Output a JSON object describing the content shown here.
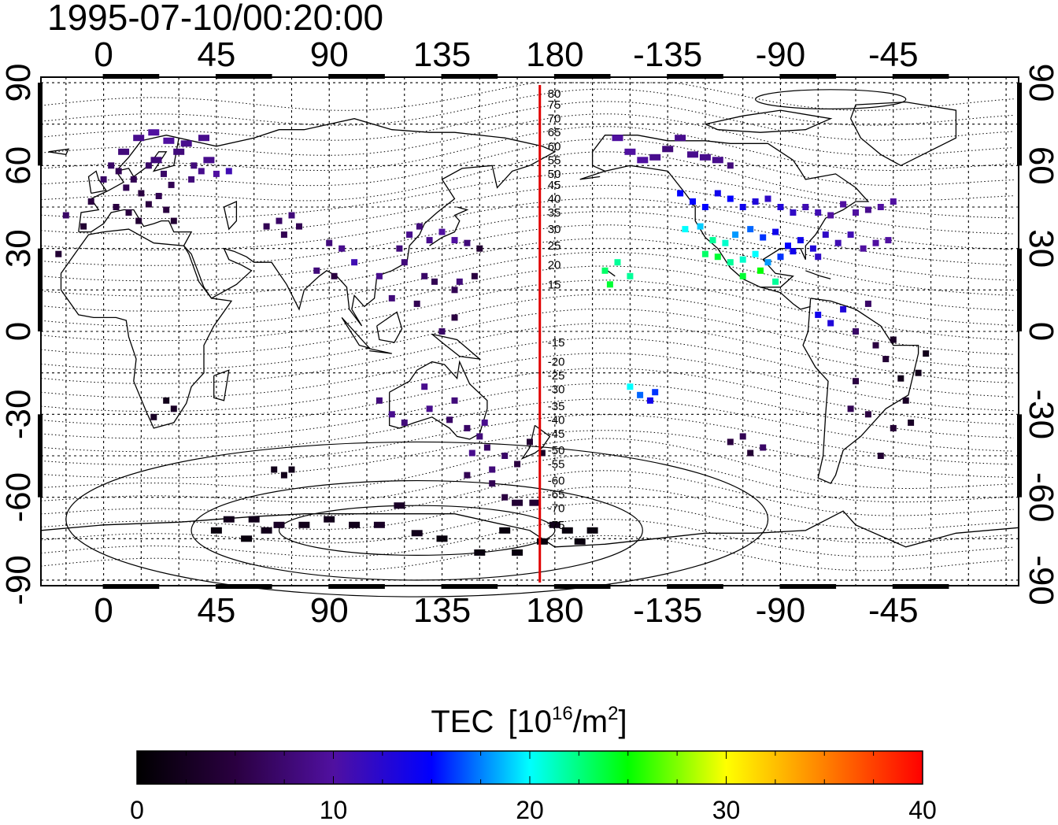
{
  "title": "1995-07-10/00:20:00",
  "map": {
    "lon_range": [
      -25,
      365
    ],
    "lat_range": [
      -92,
      92
    ],
    "top_lon_ticks": [
      "0",
      "45",
      "90",
      "135",
      "180",
      "-135",
      "-90",
      "-45"
    ],
    "bottom_lon_ticks": [
      "0",
      "45",
      "90",
      "135",
      "180",
      "-135",
      "-90",
      "-45"
    ],
    "left_lat_ticks": [
      "90",
      "60",
      "30",
      "0",
      "-30",
      "-60",
      "-90"
    ],
    "right_lat_ticks": [
      "90",
      "60",
      "30",
      "0",
      "-30",
      "-60",
      "-90"
    ],
    "tick_lon_values": [
      0,
      45,
      90,
      135,
      180,
      225,
      270,
      315
    ],
    "tick_lat_values": [
      90,
      60,
      30,
      0,
      -30,
      -60,
      -90
    ],
    "meridian_lon": 174,
    "meridian_color": "#e00000",
    "contour_labels": [
      "80",
      "75",
      "70",
      "65",
      "60",
      "55",
      "50",
      "45",
      "40",
      "35",
      "30",
      "25",
      "20",
      "15",
      "-15",
      "-20",
      "-25",
      "-30",
      "-35",
      "-40",
      "-45",
      "-50",
      "-55",
      "-60",
      "-65",
      "-70",
      "-75"
    ],
    "contour_label_lats": [
      86,
      82,
      77,
      72,
      67,
      62,
      57,
      53,
      48,
      43,
      37,
      31,
      24,
      17,
      -4,
      -11,
      -16,
      -21,
      -27,
      -32,
      -37,
      -43,
      -48,
      -54,
      -59,
      -64,
      -70
    ]
  },
  "colorbar": {
    "title": "TEC",
    "units": "[10",
    "units_exp": "16",
    "units_tail": "/m",
    "units_sq": "2",
    "units_end": "]",
    "range": [
      0,
      40
    ],
    "tick_labels": [
      "0",
      "10",
      "20",
      "30",
      "40"
    ],
    "tick_values": [
      0,
      10,
      20,
      30,
      40
    ],
    "stops": [
      "#000000",
      "#2a0040",
      "#5010a0",
      "#0000ff",
      "#00ffff",
      "#00ff00",
      "#ffff00",
      "#ff8000",
      "#ff0000"
    ]
  },
  "chart_data": {
    "type": "scatter",
    "title": "1995-07-10/00:20:00",
    "xlabel": "",
    "ylabel": "",
    "value_name": "TEC",
    "points": [
      [
        0,
        55,
        7
      ],
      [
        3,
        60,
        7
      ],
      [
        6,
        58,
        6
      ],
      [
        9,
        52,
        6
      ],
      [
        12,
        55,
        6
      ],
      [
        15,
        50,
        5
      ],
      [
        18,
        60,
        7
      ],
      [
        21,
        62,
        8
      ],
      [
        24,
        57,
        7
      ],
      [
        27,
        53,
        6
      ],
      [
        30,
        65,
        8
      ],
      [
        33,
        68,
        9
      ],
      [
        36,
        60,
        8
      ],
      [
        39,
        58,
        9
      ],
      [
        42,
        62,
        9
      ],
      [
        45,
        57,
        10
      ],
      [
        50,
        58,
        11
      ],
      [
        -5,
        47,
        5
      ],
      [
        -8,
        38,
        4
      ],
      [
        5,
        45,
        5
      ],
      [
        10,
        43,
        5
      ],
      [
        14,
        40,
        4
      ],
      [
        18,
        46,
        5
      ],
      [
        22,
        49,
        6
      ],
      [
        25,
        44,
        5
      ],
      [
        28,
        40,
        4
      ],
      [
        35,
        55,
        8
      ],
      [
        40,
        70,
        9
      ],
      [
        20,
        72,
        10
      ],
      [
        -15,
        42,
        7
      ],
      [
        -18,
        28,
        4
      ],
      [
        8,
        65,
        8
      ],
      [
        14,
        70,
        9
      ],
      [
        26,
        69,
        10
      ],
      [
        65,
        38,
        6
      ],
      [
        70,
        40,
        7
      ],
      [
        75,
        42,
        8
      ],
      [
        78,
        38,
        6
      ],
      [
        72,
        35,
        6
      ],
      [
        90,
        32,
        8
      ],
      [
        95,
        30,
        9
      ],
      [
        100,
        25,
        11
      ],
      [
        85,
        22,
        8
      ],
      [
        92,
        20,
        5
      ],
      [
        118,
        30,
        8
      ],
      [
        122,
        35,
        9
      ],
      [
        126,
        38,
        8
      ],
      [
        130,
        33,
        9
      ],
      [
        135,
        36,
        10
      ],
      [
        140,
        33,
        10
      ],
      [
        145,
        32,
        8
      ],
      [
        150,
        30,
        4
      ],
      [
        128,
        20,
        7
      ],
      [
        132,
        18,
        6
      ],
      [
        140,
        15,
        6
      ],
      [
        142,
        18,
        8
      ],
      [
        148,
        20,
        5
      ],
      [
        120,
        25,
        8
      ],
      [
        115,
        12,
        8
      ],
      [
        110,
        20,
        9
      ],
      [
        125,
        10,
        6
      ],
      [
        135,
        0,
        7
      ],
      [
        140,
        5,
        5
      ],
      [
        110,
        -25,
        8
      ],
      [
        115,
        -30,
        9
      ],
      [
        120,
        -33,
        8
      ],
      [
        130,
        -28,
        9
      ],
      [
        138,
        -32,
        7
      ],
      [
        145,
        -35,
        7
      ],
      [
        150,
        -38,
        8
      ],
      [
        152,
        -33,
        9
      ],
      [
        128,
        -20,
        9
      ],
      [
        140,
        -25,
        8
      ],
      [
        147,
        -44,
        9
      ],
      [
        153,
        -42,
        7
      ],
      [
        160,
        -45,
        7
      ],
      [
        165,
        -48,
        5
      ],
      [
        170,
        -40,
        4
      ],
      [
        175,
        -44,
        3
      ],
      [
        155,
        -55,
        6
      ],
      [
        160,
        -60,
        5
      ],
      [
        165,
        -62,
        4
      ],
      [
        172,
        -62,
        4
      ],
      [
        180,
        -70,
        2
      ],
      [
        185,
        -72,
        1
      ],
      [
        160,
        -72,
        1
      ],
      [
        150,
        -80,
        1
      ],
      [
        165,
        -80,
        1
      ],
      [
        175,
        -76,
        1
      ],
      [
        190,
        -76,
        1
      ],
      [
        195,
        -72,
        1
      ],
      [
        135,
        -75,
        1
      ],
      [
        125,
        -73,
        2
      ],
      [
        110,
        -70,
        3
      ],
      [
        100,
        -70,
        2
      ],
      [
        90,
        -68,
        2
      ],
      [
        80,
        -70,
        2
      ],
      [
        70,
        -70,
        3
      ],
      [
        65,
        -72,
        2
      ],
      [
        60,
        -68,
        2
      ],
      [
        50,
        -68,
        2
      ],
      [
        45,
        -72,
        1
      ],
      [
        57,
        -75,
        1
      ],
      [
        68,
        -50,
        2
      ],
      [
        72,
        -52,
        2
      ],
      [
        75,
        -50,
        2
      ],
      [
        118,
        -63,
        3
      ],
      [
        145,
        -52,
        6
      ],
      [
        155,
        -50,
        8
      ],
      [
        25,
        -25,
        2
      ],
      [
        28,
        -28,
        3
      ],
      [
        20,
        -31,
        3
      ],
      [
        200,
        22,
        23
      ],
      [
        205,
        25,
        22
      ],
      [
        210,
        20,
        22
      ],
      [
        202,
        17,
        24
      ],
      [
        210,
        -20,
        20
      ],
      [
        214,
        -23,
        17
      ],
      [
        220,
        -22,
        16
      ],
      [
        218,
        -25,
        14
      ],
      [
        205,
        70,
        10
      ],
      [
        210,
        65,
        10
      ],
      [
        215,
        62,
        10
      ],
      [
        220,
        63,
        9
      ],
      [
        225,
        66,
        8
      ],
      [
        230,
        70,
        9
      ],
      [
        235,
        64,
        9
      ],
      [
        240,
        63,
        9
      ],
      [
        245,
        62,
        9
      ],
      [
        250,
        60,
        8
      ],
      [
        230,
        50,
        15
      ],
      [
        235,
        47,
        15
      ],
      [
        240,
        45,
        15
      ],
      [
        245,
        50,
        14
      ],
      [
        250,
        48,
        15
      ],
      [
        255,
        45,
        14
      ],
      [
        260,
        47,
        13
      ],
      [
        265,
        48,
        12
      ],
      [
        270,
        45,
        13
      ],
      [
        275,
        43,
        12
      ],
      [
        280,
        45,
        11
      ],
      [
        285,
        43,
        11
      ],
      [
        290,
        42,
        10
      ],
      [
        295,
        46,
        10
      ],
      [
        300,
        43,
        10
      ],
      [
        305,
        44,
        9
      ],
      [
        310,
        45,
        10
      ],
      [
        315,
        47,
        10
      ],
      [
        232,
        37,
        20
      ],
      [
        238,
        38,
        19
      ],
      [
        243,
        33,
        22
      ],
      [
        248,
        32,
        21
      ],
      [
        252,
        35,
        18
      ],
      [
        258,
        37,
        17
      ],
      [
        263,
        34,
        16
      ],
      [
        268,
        36,
        14
      ],
      [
        273,
        31,
        15
      ],
      [
        278,
        33,
        14
      ],
      [
        283,
        30,
        13
      ],
      [
        288,
        35,
        12
      ],
      [
        293,
        32,
        11
      ],
      [
        298,
        35,
        11
      ],
      [
        303,
        30,
        10
      ],
      [
        308,
        32,
        10
      ],
      [
        313,
        33,
        10
      ],
      [
        240,
        28,
        23
      ],
      [
        245,
        27,
        24
      ],
      [
        250,
        25,
        22
      ],
      [
        255,
        26,
        21
      ],
      [
        260,
        28,
        20
      ],
      [
        265,
        25,
        18
      ],
      [
        270,
        27,
        16
      ],
      [
        275,
        29,
        14
      ],
      [
        285,
        27,
        12
      ],
      [
        255,
        20,
        24
      ],
      [
        262,
        22,
        25
      ],
      [
        268,
        18,
        22
      ],
      [
        285,
        6,
        14
      ],
      [
        290,
        3,
        13
      ],
      [
        295,
        8,
        13
      ],
      [
        300,
        0,
        7
      ],
      [
        305,
        10,
        7
      ],
      [
        308,
        -5,
        5
      ],
      [
        312,
        -10,
        4
      ],
      [
        315,
        -3,
        3
      ],
      [
        318,
        -17,
        2
      ],
      [
        320,
        -25,
        3
      ],
      [
        322,
        -33,
        3
      ],
      [
        300,
        -18,
        5
      ],
      [
        305,
        -30,
        5
      ],
      [
        310,
        -45,
        4
      ],
      [
        315,
        -35,
        4
      ],
      [
        325,
        -15,
        2
      ],
      [
        328,
        -8,
        2
      ],
      [
        298,
        -28,
        6
      ],
      [
        250,
        -40,
        5
      ],
      [
        255,
        -38,
        6
      ],
      [
        258,
        -44,
        4
      ],
      [
        263,
        -42,
        7
      ]
    ]
  }
}
